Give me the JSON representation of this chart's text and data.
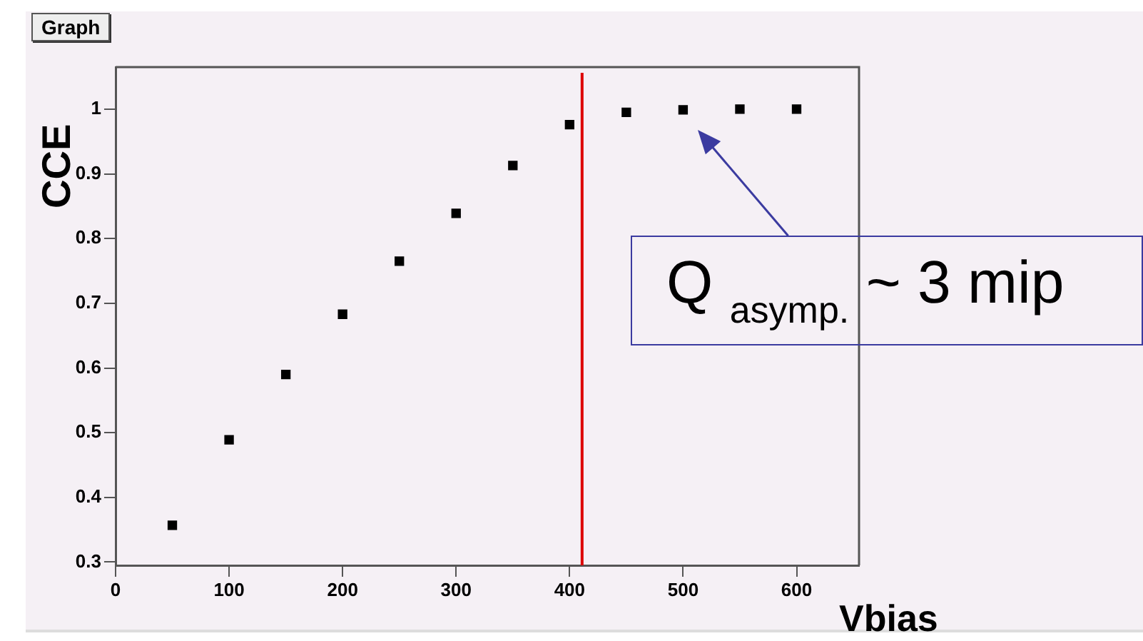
{
  "chart_data": {
    "type": "scatter",
    "title": "Graph",
    "xlabel": "Vbias",
    "ylabel": "CCE",
    "x": [
      50,
      100,
      150,
      200,
      250,
      300,
      350,
      400,
      450,
      500,
      550,
      600
    ],
    "series": [
      {
        "color": "#000000",
        "values": [
          0.357,
          0.489,
          0.59,
          0.683,
          0.765,
          0.839,
          0.913,
          0.976,
          0.995,
          0.999,
          1.0,
          1.0
        ]
      }
    ],
    "xlim": [
      0,
      655
    ],
    "xticks": [
      0,
      100,
      200,
      300,
      400,
      500,
      600
    ],
    "ylim": [
      0.295,
      1.065
    ],
    "yticks": [
      0.3,
      0.4,
      0.5,
      0.6,
      0.7,
      0.8,
      0.9,
      1
    ],
    "ref_lines": [
      {
        "axis": "x",
        "value": 411,
        "color": "#dd0000"
      }
    ],
    "annotations": [
      {
        "text": "Q $_{asymp.}$ ~ 3 mip",
        "x": 500,
        "y": 0.999
      }
    ],
    "marker": "square",
    "grid": false,
    "legend": false
  }
}
